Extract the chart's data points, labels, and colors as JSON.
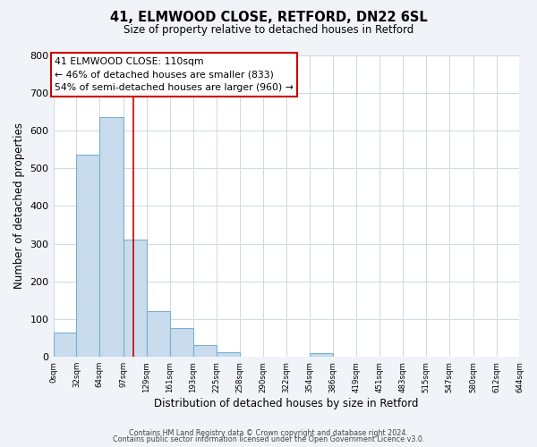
{
  "title": "41, ELMWOOD CLOSE, RETFORD, DN22 6SL",
  "subtitle": "Size of property relative to detached houses in Retford",
  "xlabel": "Distribution of detached houses by size in Retford",
  "ylabel": "Number of detached properties",
  "bin_edges": [
    0,
    32,
    64,
    97,
    129,
    161,
    193,
    225,
    258,
    290,
    322,
    354,
    386,
    419,
    451,
    483,
    515,
    547,
    580,
    612,
    644
  ],
  "bin_counts": [
    65,
    535,
    635,
    312,
    122,
    77,
    32,
    12,
    0,
    0,
    0,
    10,
    0,
    0,
    0,
    0,
    0,
    0,
    0,
    0
  ],
  "bar_color": "#c8dcee",
  "bar_edge_color": "#7ab0d0",
  "property_line_x": 110,
  "property_line_color": "#cc0000",
  "annotation_title": "41 ELMWOOD CLOSE: 110sqm",
  "annotation_line1": "← 46% of detached houses are smaller (833)",
  "annotation_line2": "54% of semi-detached houses are larger (960) →",
  "annotation_box_color": "#cc0000",
  "ylim": [
    0,
    800
  ],
  "yticks": [
    0,
    100,
    200,
    300,
    400,
    500,
    600,
    700,
    800
  ],
  "xtick_labels": [
    "0sqm",
    "32sqm",
    "64sqm",
    "97sqm",
    "129sqm",
    "161sqm",
    "193sqm",
    "225sqm",
    "258sqm",
    "290sqm",
    "322sqm",
    "354sqm",
    "386sqm",
    "419sqm",
    "451sqm",
    "483sqm",
    "515sqm",
    "547sqm",
    "580sqm",
    "612sqm",
    "644sqm"
  ],
  "footer1": "Contains HM Land Registry data © Crown copyright and database right 2024.",
  "footer2": "Contains public sector information licensed under the Open Government Licence v3.0.",
  "background_color": "#f0f4f8",
  "plot_bg_color": "#ffffff",
  "grid_color": "#d0d8e0"
}
